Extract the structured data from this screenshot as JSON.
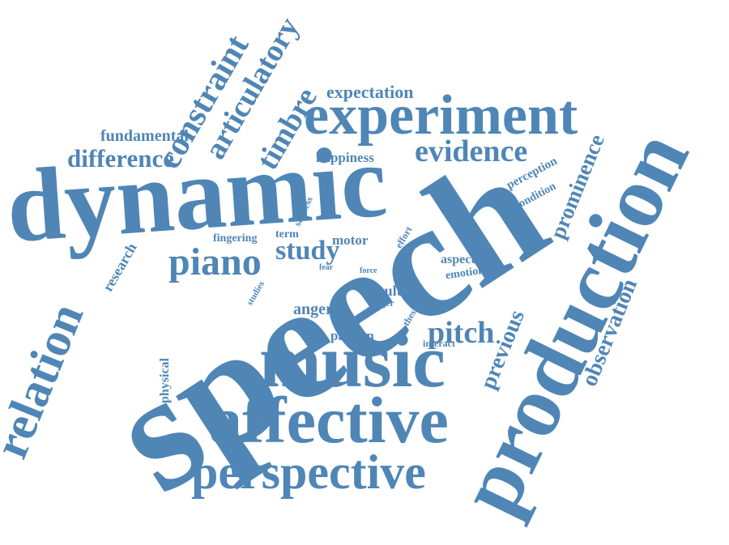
{
  "color": "#4f86b6",
  "words": {
    "speech": "speech",
    "dynamic": "dynamic",
    "production": "production",
    "experiment": "experiment",
    "music": "music",
    "affective": "affective",
    "perspective": "perspective",
    "relation": "relation",
    "piano": "piano",
    "evidence": "evidence",
    "difference": "difference",
    "constraint": "constraint",
    "articulatory": "articulatory",
    "timbre": "timbre",
    "expectation": "expectation",
    "fundamental": "fundamental",
    "happiness": "happiness",
    "study": "study",
    "pitch": "pitch",
    "prominence": "prominence",
    "observation": "observation",
    "previous": "previous",
    "perception": "perception",
    "condition": "condition",
    "research": "research",
    "physical": "physical",
    "fingering": "fingering",
    "term": "term",
    "motor": "motor",
    "effort": "effort",
    "sadness": "sadness",
    "fear": "fear",
    "force": "force",
    "studies": "studies",
    "aspect": "aspect",
    "emotion": "emotion",
    "result": "result",
    "finger": "finger",
    "anger": "anger",
    "thesis": "thesis",
    "interact": "interact",
    "pattern": "pattern"
  }
}
